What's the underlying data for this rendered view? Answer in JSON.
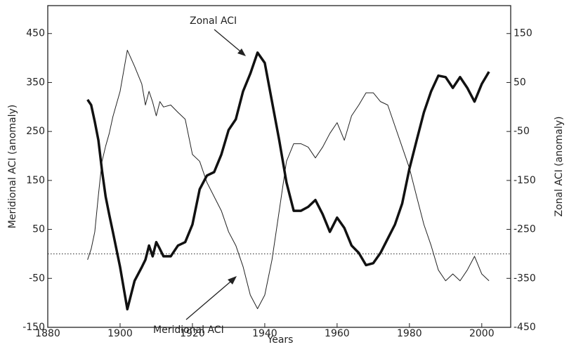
{
  "chart_data": {
    "type": "line",
    "xlabel": "Years",
    "ylabel": "Meridional ACI (anomaly)",
    "y2label": "Zonal ACI (anomaly)",
    "xlim": [
      1880,
      2008
    ],
    "xticks": [
      1880,
      1900,
      1920,
      1940,
      1960,
      1980,
      2000
    ],
    "ylim": [
      -150,
      507
    ],
    "yticks": [
      -150,
      -50,
      50,
      150,
      250,
      350,
      450
    ],
    "y2lim": [
      -450,
      207
    ],
    "y2ticks": [
      -450,
      -350,
      -250,
      -150,
      -50,
      50,
      150
    ],
    "reference_line": 0,
    "x": [
      1891,
      1892,
      1893,
      1894,
      1895,
      1896,
      1897,
      1898,
      1900,
      1902,
      1904,
      1906,
      1907,
      1908,
      1909,
      1910,
      1911,
      1912,
      1914,
      1916,
      1918,
      1920,
      1922,
      1924,
      1926,
      1928,
      1930,
      1932,
      1934,
      1936,
      1938,
      1940,
      1942,
      1944,
      1946,
      1948,
      1950,
      1952,
      1954,
      1956,
      1958,
      1960,
      1962,
      1964,
      1966,
      1968,
      1970,
      1972,
      1974,
      1976,
      1978,
      1980,
      1982,
      1984,
      1986,
      1988,
      1990,
      1992,
      1994,
      1996,
      1998,
      2000,
      2002
    ],
    "series": [
      {
        "name": "Meridional ACI",
        "color": "#222222",
        "width": 1,
        "values": [
          -12,
          10,
          45,
          120,
          189,
          220,
          246,
          280,
          332,
          416,
          383,
          347,
          304,
          332,
          310,
          282,
          311,
          300,
          304,
          289,
          275,
          203,
          189,
          146,
          117,
          88,
          45,
          17,
          -26,
          -84,
          -112,
          -84,
          -12,
          88,
          189,
          225,
          225,
          218,
          196,
          218,
          246,
          268,
          232,
          282,
          304,
          329,
          329,
          311,
          304,
          261,
          218,
          175,
          117,
          60,
          17,
          -33,
          -55,
          -41,
          -55,
          -33,
          -5,
          -41,
          -55
        ]
      },
      {
        "name": "Zonal ACI",
        "color": "#111111",
        "width": 3.5,
        "axis": "y2",
        "values": [
          15,
          4,
          -30,
          -68,
          -130,
          -183,
          -220,
          -255,
          -327,
          -413,
          -355,
          -327,
          -312,
          -283,
          -305,
          -276,
          -290,
          -305,
          -305,
          -283,
          -276,
          -240,
          -168,
          -140,
          -133,
          -97,
          -47,
          -25,
          32,
          68,
          111,
          90,
          11,
          -68,
          -154,
          -212,
          -212,
          -204,
          -190,
          -219,
          -255,
          -226,
          -247,
          -283,
          -298,
          -323,
          -319,
          -298,
          -269,
          -240,
          -197,
          -126,
          -68,
          -11,
          32,
          64,
          61,
          39,
          61,
          39,
          11,
          47,
          72
        ]
      }
    ]
  }
}
